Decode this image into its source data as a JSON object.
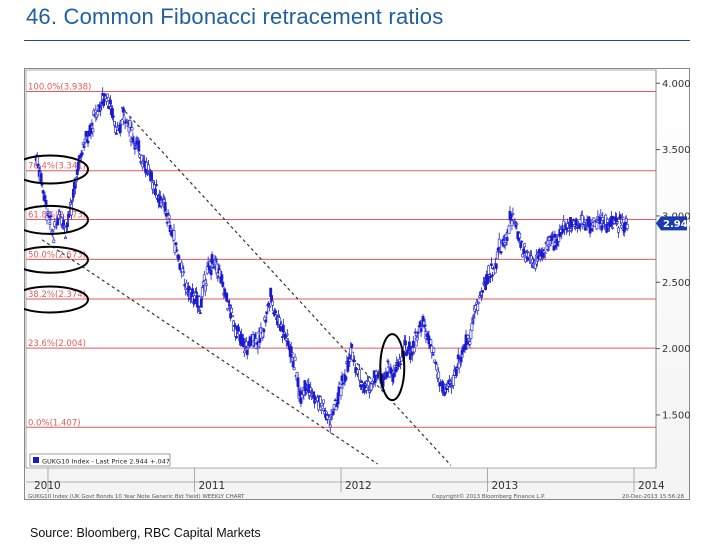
{
  "title": "46. Common Fibonacci retracement ratios",
  "source": "Source: Bloomberg, RBC Capital Markets",
  "colors": {
    "title": "#1f5fa0",
    "candles": "#1a1ad0",
    "fib_lines": "#e35a5a",
    "fib_labels": "#e35a5a",
    "last_price_tag": "#1a3ab0"
  },
  "chart_data": {
    "type": "line",
    "title": "",
    "xlabel": "",
    "ylabel": "",
    "ylim": [
      1.1,
      4.1
    ],
    "yticks": [
      "4.000",
      "3.500",
      "3.000",
      "2.500",
      "2.000",
      "1.500"
    ],
    "ytick_values": [
      4.0,
      3.5,
      3.0,
      2.5,
      2.0,
      1.5
    ],
    "xticks": [
      "2010",
      "2011",
      "2012",
      "2013",
      "2014"
    ],
    "xtick_values": [
      2010.0,
      2011.0,
      2012.0,
      2013.0,
      2014.0
    ],
    "xlim": [
      2009.85,
      2014.15
    ],
    "grid": false,
    "legend": "GUKG10 Index - Last Price 2.944 +.047",
    "last_price": 2.944,
    "last_price_label": "2.944",
    "footer_left": "GUKG10 Index (UK Govt Bonds 10 Year Note Generic Bid Yield) WEEKLY CHART",
    "footer_right": "Copyright© 2013 Bloomberg Finance L.P.",
    "footer_date": "20-Dec-2013 15:56:28",
    "fib_levels": [
      {
        "label": "100.0%(3.938)",
        "value": 3.938
      },
      {
        "label": "76.4%(3.341)",
        "value": 3.341
      },
      {
        "label": "61.8%(2.973)",
        "value": 2.973
      },
      {
        "label": "50.0%(2.673)",
        "value": 2.673
      },
      {
        "label": "38.2%(2.374)",
        "value": 2.374
      },
      {
        "label": "23.6%(2.004)",
        "value": 2.004
      },
      {
        "label": "0.0%(1.407)",
        "value": 1.407
      }
    ],
    "series": [
      {
        "x": [
          2009.92,
          2009.96,
          2010.0,
          2010.04,
          2010.08,
          2010.12,
          2010.16,
          2010.2,
          2010.24,
          2010.28,
          2010.32,
          2010.36,
          2010.4,
          2010.44,
          2010.48,
          2010.52,
          2010.56,
          2010.6,
          2010.64,
          2010.68,
          2010.72,
          2010.76,
          2010.8,
          2010.84,
          2010.88,
          2010.92,
          2010.96,
          2011.0,
          2011.04,
          2011.08,
          2011.12,
          2011.16,
          2011.2,
          2011.24,
          2011.28,
          2011.32,
          2011.36,
          2011.4,
          2011.44,
          2011.48,
          2011.52,
          2011.56,
          2011.6,
          2011.64,
          2011.68,
          2011.72,
          2011.76,
          2011.8,
          2011.84,
          2011.88,
          2011.92,
          2011.96,
          2012.0,
          2012.04,
          2012.08,
          2012.12,
          2012.16,
          2012.2,
          2012.24,
          2012.28,
          2012.32,
          2012.36,
          2012.4,
          2012.44,
          2012.48,
          2012.52,
          2012.56,
          2012.6,
          2012.64,
          2012.68,
          2012.72,
          2012.76,
          2012.8,
          2012.84,
          2012.88,
          2012.92,
          2012.96,
          2013.0,
          2013.04,
          2013.08,
          2013.12,
          2013.16,
          2013.2,
          2013.24,
          2013.28,
          2013.32,
          2013.36,
          2013.4,
          2013.44,
          2013.48,
          2013.52,
          2013.56,
          2013.6,
          2013.64,
          2013.68,
          2013.72,
          2013.76,
          2013.8,
          2013.84,
          2013.88,
          2013.92,
          2013.96
        ],
        "y": [
          3.45,
          3.25,
          3.0,
          2.85,
          3.05,
          2.9,
          3.05,
          3.35,
          3.55,
          3.6,
          3.75,
          3.85,
          3.92,
          3.78,
          3.6,
          3.8,
          3.65,
          3.55,
          3.45,
          3.35,
          3.25,
          3.15,
          3.05,
          2.9,
          2.75,
          2.55,
          2.42,
          2.38,
          2.33,
          2.55,
          2.65,
          2.6,
          2.45,
          2.3,
          2.15,
          2.05,
          2.0,
          2.1,
          2.05,
          2.2,
          2.4,
          2.25,
          2.15,
          2.05,
          1.9,
          1.65,
          1.75,
          1.65,
          1.6,
          1.55,
          1.45,
          1.55,
          1.7,
          1.85,
          1.98,
          1.8,
          1.7,
          1.72,
          1.82,
          1.78,
          1.85,
          1.8,
          1.9,
          2.0,
          1.98,
          2.1,
          2.2,
          2.05,
          1.9,
          1.72,
          1.68,
          1.75,
          1.9,
          2.0,
          2.1,
          2.3,
          2.42,
          2.55,
          2.6,
          2.75,
          2.8,
          3.0,
          2.9,
          2.75,
          2.7,
          2.65,
          2.7,
          2.75,
          2.8,
          2.85,
          2.9,
          2.95,
          2.944,
          2.944,
          2.944,
          2.944,
          2.944,
          2.944,
          2.944,
          2.944,
          2.944,
          2.944
        ]
      }
    ]
  }
}
